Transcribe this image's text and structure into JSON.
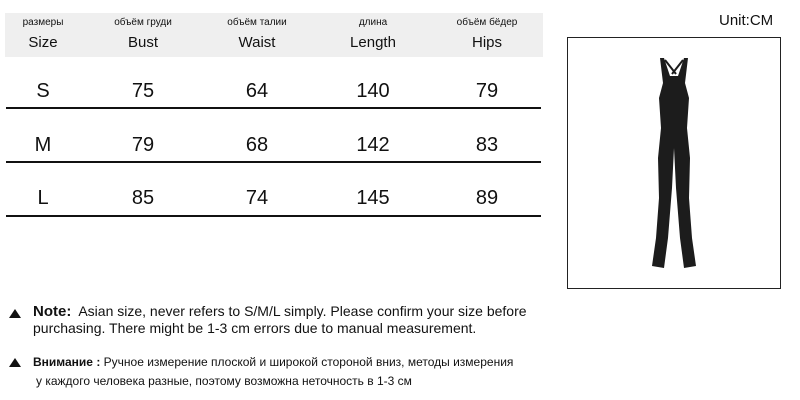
{
  "unit_label": "Unit:CM",
  "columns": [
    {
      "ru": "размеры",
      "en": "Size"
    },
    {
      "ru": "объём груди",
      "en": "Bust"
    },
    {
      "ru": "объём талии",
      "en": "Waist"
    },
    {
      "ru": "длина",
      "en": "Length"
    },
    {
      "ru": "объём бёдер",
      "en": "Hips"
    }
  ],
  "rows": [
    [
      "S",
      "75",
      "64",
      "140",
      "79"
    ],
    [
      "M",
      "79",
      "68",
      "142",
      "83"
    ],
    [
      "L",
      "85",
      "74",
      "145",
      "89"
    ]
  ],
  "note": {
    "label": "Note:",
    "line1": "Asian size, never refers to S/M/L simply. Please confirm your size before",
    "line2": "purchasing. There might be 1-3 cm errors due to manual measurement."
  },
  "note_ru": {
    "label": "Внимание :",
    "line1": "Ручное измерение плоской и широкой стороной вниз, методы измерения",
    "line2": "у каждого человека разные, поэтому возможна неточность в 1-3 см"
  },
  "product_image": "black-flare-jumpsuit"
}
